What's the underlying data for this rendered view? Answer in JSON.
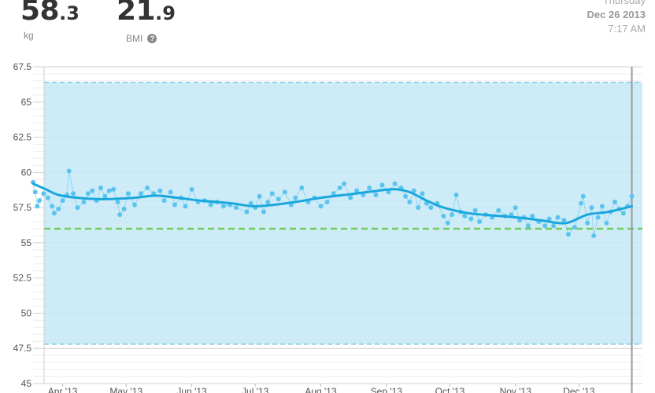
{
  "header": {
    "weight_int": "58",
    "weight_dec": ".3",
    "weight_unit": "kg",
    "bmi_int": "21",
    "bmi_dec": ".9",
    "bmi_label": "BMI",
    "help_glyph": "?",
    "weekday": "Thursday",
    "date": "Dec 26 2013",
    "time": "7:17 AM"
  },
  "colors": {
    "band_fill": "#c6e9f7",
    "trend_line": "#1aa7de",
    "points": "#5bc4ee",
    "goal_line": "#72cc5a",
    "band_edge": "#7fcbe6"
  },
  "chart_data": {
    "type": "line",
    "title": "",
    "xlabel": "",
    "ylabel": "",
    "ylim": [
      45,
      67.5
    ],
    "yticks": [
      45,
      47.5,
      50,
      52.5,
      55,
      57.5,
      60,
      62.5,
      65,
      67.5
    ],
    "xlim": [
      "2013-03-18",
      "2013-12-31"
    ],
    "x_ticks": [
      {
        "label": "Apr '13",
        "date": "2013-04-01"
      },
      {
        "label": "May '13",
        "date": "2013-05-01"
      },
      {
        "label": "Jun '13",
        "date": "2013-06-01"
      },
      {
        "label": "Jul '13",
        "date": "2013-07-01"
      },
      {
        "label": "Aug '13",
        "date": "2013-08-01"
      },
      {
        "label": "Sep '13",
        "date": "2013-09-01"
      },
      {
        "label": "Oct '13",
        "date": "2013-10-01"
      },
      {
        "label": "Nov '13",
        "date": "2013-11-01"
      },
      {
        "label": "Dec '13",
        "date": "2013-12-01"
      }
    ],
    "healthy_range": [
      47.8,
      66.4
    ],
    "goal": 56,
    "trend": [
      [
        "2013-03-18",
        59.2
      ],
      [
        "2013-03-24",
        58.8
      ],
      [
        "2013-03-30",
        58.4
      ],
      [
        "2013-04-08",
        58.2
      ],
      [
        "2013-04-20",
        58.1
      ],
      [
        "2013-05-05",
        58.2
      ],
      [
        "2013-05-15",
        58.35
      ],
      [
        "2013-05-25",
        58.2
      ],
      [
        "2013-06-05",
        58.0
      ],
      [
        "2013-06-20",
        57.8
      ],
      [
        "2013-06-30",
        57.6
      ],
      [
        "2013-07-10",
        57.7
      ],
      [
        "2013-07-20",
        57.9
      ],
      [
        "2013-08-01",
        58.2
      ],
      [
        "2013-08-15",
        58.45
      ],
      [
        "2013-08-28",
        58.7
      ],
      [
        "2013-09-05",
        58.8
      ],
      [
        "2013-09-12",
        58.6
      ],
      [
        "2013-09-20",
        58.0
      ],
      [
        "2013-09-28",
        57.5
      ],
      [
        "2013-10-10",
        57.1
      ],
      [
        "2013-10-25",
        56.9
      ],
      [
        "2013-11-05",
        56.75
      ],
      [
        "2013-11-15",
        56.55
      ],
      [
        "2013-11-25",
        56.4
      ],
      [
        "2013-12-05",
        57.0
      ],
      [
        "2013-12-15",
        57.2
      ],
      [
        "2013-12-26",
        57.6
      ]
    ],
    "points": [
      [
        "2013-03-18",
        59.3
      ],
      [
        "2013-03-19",
        58.6
      ],
      [
        "2013-03-20",
        57.6
      ],
      [
        "2013-03-21",
        58.0
      ],
      [
        "2013-03-23",
        58.5
      ],
      [
        "2013-03-25",
        58.2
      ],
      [
        "2013-03-27",
        57.6
      ],
      [
        "2013-03-28",
        57.1
      ],
      [
        "2013-03-30",
        57.4
      ],
      [
        "2013-04-01",
        58.0
      ],
      [
        "2013-04-03",
        58.4
      ],
      [
        "2013-04-04",
        60.1
      ],
      [
        "2013-04-06",
        58.5
      ],
      [
        "2013-04-08",
        57.5
      ],
      [
        "2013-04-11",
        57.9
      ],
      [
        "2013-04-13",
        58.5
      ],
      [
        "2013-04-15",
        58.7
      ],
      [
        "2013-04-17",
        58.0
      ],
      [
        "2013-04-19",
        58.9
      ],
      [
        "2013-04-21",
        58.3
      ],
      [
        "2013-04-23",
        58.7
      ],
      [
        "2013-04-25",
        58.8
      ],
      [
        "2013-04-27",
        57.9
      ],
      [
        "2013-04-28",
        57.0
      ],
      [
        "2013-04-30",
        57.4
      ],
      [
        "2013-05-02",
        58.5
      ],
      [
        "2013-05-05",
        57.7
      ],
      [
        "2013-05-08",
        58.5
      ],
      [
        "2013-05-11",
        58.9
      ],
      [
        "2013-05-14",
        58.5
      ],
      [
        "2013-05-17",
        58.7
      ],
      [
        "2013-05-19",
        58.0
      ],
      [
        "2013-05-22",
        58.6
      ],
      [
        "2013-05-24",
        57.7
      ],
      [
        "2013-05-27",
        58.2
      ],
      [
        "2013-05-29",
        57.6
      ],
      [
        "2013-06-01",
        58.8
      ],
      [
        "2013-06-04",
        57.9
      ],
      [
        "2013-06-07",
        58.0
      ],
      [
        "2013-06-10",
        57.7
      ],
      [
        "2013-06-13",
        57.9
      ],
      [
        "2013-06-16",
        57.6
      ],
      [
        "2013-06-19",
        57.7
      ],
      [
        "2013-06-22",
        57.5
      ],
      [
        "2013-06-27",
        57.2
      ],
      [
        "2013-06-29",
        57.8
      ],
      [
        "2013-07-01",
        57.5
      ],
      [
        "2013-07-03",
        58.3
      ],
      [
        "2013-07-05",
        57.2
      ],
      [
        "2013-07-07",
        57.9
      ],
      [
        "2013-07-09",
        58.5
      ],
      [
        "2013-07-12",
        58.1
      ],
      [
        "2013-07-15",
        58.6
      ],
      [
        "2013-07-18",
        57.7
      ],
      [
        "2013-07-20",
        58.2
      ],
      [
        "2013-07-23",
        58.9
      ],
      [
        "2013-07-26",
        57.9
      ],
      [
        "2013-07-29",
        58.2
      ],
      [
        "2013-08-01",
        57.6
      ],
      [
        "2013-08-04",
        57.9
      ],
      [
        "2013-08-07",
        58.5
      ],
      [
        "2013-08-10",
        58.9
      ],
      [
        "2013-08-12",
        59.2
      ],
      [
        "2013-08-15",
        58.2
      ],
      [
        "2013-08-18",
        58.7
      ],
      [
        "2013-08-21",
        58.4
      ],
      [
        "2013-08-24",
        58.9
      ],
      [
        "2013-08-27",
        58.4
      ],
      [
        "2013-08-30",
        59.1
      ],
      [
        "2013-09-02",
        58.6
      ],
      [
        "2013-09-05",
        59.2
      ],
      [
        "2013-09-08",
        58.9
      ],
      [
        "2013-09-10",
        58.3
      ],
      [
        "2013-09-12",
        57.9
      ],
      [
        "2013-09-14",
        58.7
      ],
      [
        "2013-09-16",
        57.5
      ],
      [
        "2013-09-18",
        58.5
      ],
      [
        "2013-09-20",
        57.8
      ],
      [
        "2013-09-22",
        57.5
      ],
      [
        "2013-09-25",
        57.8
      ],
      [
        "2013-09-28",
        56.9
      ],
      [
        "2013-09-30",
        56.4
      ],
      [
        "2013-10-02",
        57.0
      ],
      [
        "2013-10-04",
        58.4
      ],
      [
        "2013-10-06",
        57.2
      ],
      [
        "2013-10-08",
        56.9
      ],
      [
        "2013-10-11",
        56.7
      ],
      [
        "2013-10-13",
        57.3
      ],
      [
        "2013-10-15",
        56.5
      ],
      [
        "2013-10-18",
        57.0
      ],
      [
        "2013-10-21",
        56.8
      ],
      [
        "2013-10-24",
        57.3
      ],
      [
        "2013-10-27",
        56.9
      ],
      [
        "2013-10-30",
        57.0
      ],
      [
        "2013-11-01",
        57.5
      ],
      [
        "2013-11-03",
        56.6
      ],
      [
        "2013-11-05",
        56.8
      ],
      [
        "2013-11-07",
        56.2
      ],
      [
        "2013-11-09",
        56.9
      ],
      [
        "2013-11-12",
        56.5
      ],
      [
        "2013-11-15",
        56.2
      ],
      [
        "2013-11-17",
        56.7
      ],
      [
        "2013-11-19",
        56.2
      ],
      [
        "2013-11-21",
        56.8
      ],
      [
        "2013-11-24",
        56.6
      ],
      [
        "2013-11-26",
        55.6
      ],
      [
        "2013-11-29",
        56.1
      ],
      [
        "2013-12-02",
        57.8
      ],
      [
        "2013-12-03",
        58.3
      ],
      [
        "2013-12-05",
        56.4
      ],
      [
        "2013-12-07",
        57.5
      ],
      [
        "2013-12-08",
        55.5
      ],
      [
        "2013-12-10",
        56.8
      ],
      [
        "2013-12-12",
        57.6
      ],
      [
        "2013-12-14",
        56.4
      ],
      [
        "2013-12-16",
        57.2
      ],
      [
        "2013-12-18",
        57.9
      ],
      [
        "2013-12-20",
        57.4
      ],
      [
        "2013-12-22",
        57.1
      ],
      [
        "2013-12-24",
        57.6
      ],
      [
        "2013-12-26",
        58.3
      ]
    ]
  }
}
